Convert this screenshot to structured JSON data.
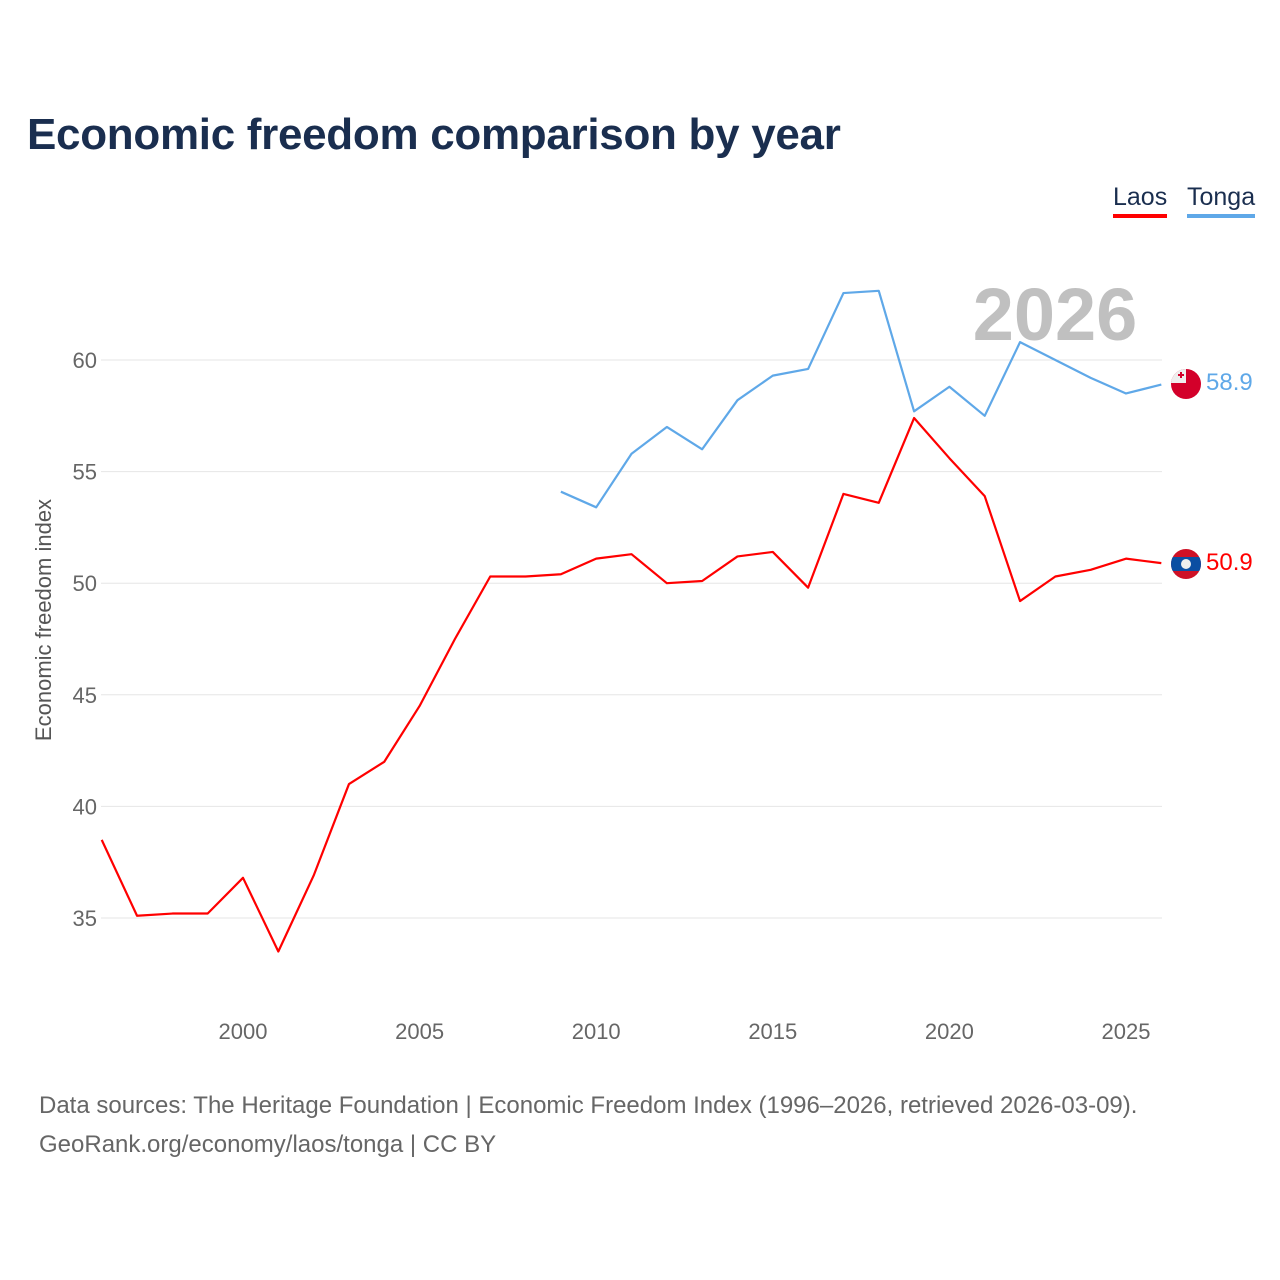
{
  "title": "Economic freedom comparison by year",
  "legend": [
    {
      "label": "Laos",
      "color": "#ff0000"
    },
    {
      "label": "Tonga",
      "color": "#5fa8e8"
    }
  ],
  "year_watermark": "2026",
  "footer": {
    "line1": "Data sources: The Heritage Foundation | Economic Freedom Index (1996–2026, retrieved 2026-03-09).",
    "line2": "GeoRank.org/economy/laos/tonga | CC BY"
  },
  "chart_data": {
    "type": "line",
    "title": "Economic freedom comparison by year",
    "xlabel": "",
    "ylabel": "Economic freedom index",
    "xlim": [
      1996,
      2026
    ],
    "ylim": [
      31,
      64
    ],
    "xticks": [
      2000,
      2005,
      2010,
      2015,
      2020,
      2025
    ],
    "yticks": [
      35,
      40,
      45,
      50,
      55,
      60
    ],
    "grid": true,
    "legend_position": "top-right",
    "series": [
      {
        "name": "Laos",
        "color": "#ff0000",
        "end_label": "50.9",
        "x": [
          1996,
          1997,
          1998,
          1999,
          2000,
          2001,
          2002,
          2003,
          2004,
          2005,
          2006,
          2007,
          2008,
          2009,
          2010,
          2011,
          2012,
          2013,
          2014,
          2015,
          2016,
          2017,
          2018,
          2019,
          2020,
          2021,
          2022,
          2023,
          2024,
          2025,
          2026
        ],
        "values": [
          38.5,
          35.1,
          35.2,
          35.2,
          36.8,
          33.5,
          36.9,
          41.0,
          42.0,
          44.5,
          47.5,
          50.3,
          50.3,
          50.4,
          51.1,
          51.3,
          50.0,
          50.1,
          51.2,
          51.4,
          49.8,
          54.0,
          53.6,
          57.4,
          55.6,
          53.9,
          49.2,
          50.3,
          50.6,
          51.1,
          50.9
        ]
      },
      {
        "name": "Tonga",
        "color": "#5fa8e8",
        "end_label": "58.9",
        "x": [
          2009,
          2010,
          2011,
          2012,
          2013,
          2014,
          2015,
          2016,
          2017,
          2018,
          2019,
          2020,
          2021,
          2022,
          2023,
          2024,
          2025,
          2026
        ],
        "values": [
          54.1,
          53.4,
          55.8,
          57.0,
          56.0,
          58.2,
          59.3,
          59.6,
          63.0,
          63.1,
          57.7,
          58.8,
          57.5,
          60.8,
          60.0,
          59.2,
          58.5,
          58.9
        ]
      }
    ]
  }
}
